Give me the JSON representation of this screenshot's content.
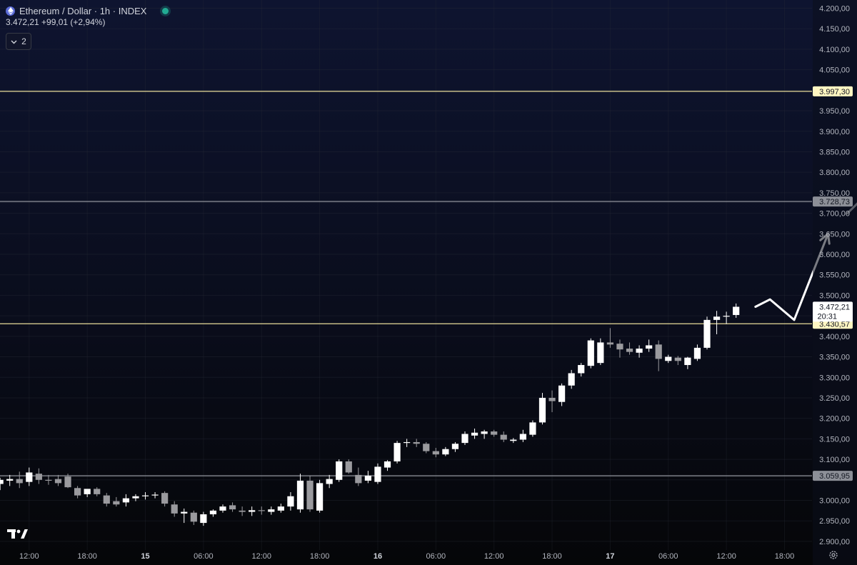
{
  "legend": {
    "title": "Ethereum / Dollar · 1h · INDEX",
    "price_line": "3.472,21 +99,01 (+2,94%)",
    "indicator_count": "2"
  },
  "icons": {
    "symbol": "ethereum-icon",
    "status": "market-status-dot",
    "collapse": "chevron-down-icon",
    "logo": "tradingview-logo",
    "settings": "gear-icon"
  },
  "colors": {
    "up": "#ffffff",
    "down": "#9a9a9e",
    "yellow_line": "#f5e9a0",
    "gray_line": "#8a8d96",
    "status": "#22ab94"
  },
  "chart_data": {
    "type": "candlestick",
    "symbol": "Ethereum / Dollar",
    "interval": "1h",
    "ylim": [
      2880,
      4220
    ],
    "y_ticks": [
      "4.200,00",
      "4.150,00",
      "4.100,00",
      "4.050,00",
      "3.950,00",
      "3.900,00",
      "3.850,00",
      "3.800,00",
      "3.750,00",
      "3.700,00",
      "3.650,00",
      "3.600,00",
      "3.550,00",
      "3.500,00",
      "3.400,00",
      "3.350,00",
      "3.300,00",
      "3.250,00",
      "3.200,00",
      "3.150,00",
      "3.100,00",
      "3.000,00",
      "2.950,00",
      "2.900,00"
    ],
    "y_tick_values": [
      4200,
      4150,
      4100,
      4050,
      3950,
      3900,
      3850,
      3800,
      3750,
      3700,
      3650,
      3600,
      3550,
      3500,
      3400,
      3350,
      3300,
      3250,
      3200,
      3150,
      3100,
      3000,
      2950,
      2900
    ],
    "x_ticks": [
      {
        "label": "12:00",
        "hour": 0,
        "bold": false
      },
      {
        "label": "18:00",
        "hour": 6,
        "bold": false
      },
      {
        "label": "15",
        "hour": 12,
        "bold": true
      },
      {
        "label": "06:00",
        "hour": 18,
        "bold": false
      },
      {
        "label": "12:00",
        "hour": 24,
        "bold": false
      },
      {
        "label": "18:00",
        "hour": 30,
        "bold": false
      },
      {
        "label": "16",
        "hour": 36,
        "bold": true
      },
      {
        "label": "06:00",
        "hour": 42,
        "bold": false
      },
      {
        "label": "12:00",
        "hour": 48,
        "bold": false
      },
      {
        "label": "18:00",
        "hour": 54,
        "bold": false
      },
      {
        "label": "17",
        "hour": 60,
        "bold": true
      },
      {
        "label": "06:00",
        "hour": 66,
        "bold": false
      },
      {
        "label": "12:00",
        "hour": 72,
        "bold": false
      },
      {
        "label": "18:00",
        "hour": 78,
        "bold": false
      }
    ],
    "horizontal_levels": [
      {
        "value": 3997.3,
        "label": "3.997,30",
        "style": "yellow"
      },
      {
        "value": 3728.73,
        "label": "3.728,73",
        "style": "gray"
      },
      {
        "value": 3430.57,
        "label": "3.430,57",
        "style": "yellow"
      },
      {
        "value": 3059.95,
        "label": "3.059,95",
        "style": "gray"
      }
    ],
    "last_price": {
      "value": 3472.21,
      "label": "3.472,21",
      "countdown": "20:31"
    },
    "candles": [
      {
        "o": 3040,
        "h": 3055,
        "l": 3025,
        "c": 3050
      },
      {
        "o": 3048,
        "h": 3062,
        "l": 3035,
        "c": 3052
      },
      {
        "o": 3052,
        "h": 3070,
        "l": 3030,
        "c": 3042
      },
      {
        "o": 3045,
        "h": 3080,
        "l": 3035,
        "c": 3068
      },
      {
        "o": 3065,
        "h": 3078,
        "l": 3040,
        "c": 3050
      },
      {
        "o": 3050,
        "h": 3062,
        "l": 3038,
        "c": 3048
      },
      {
        "o": 3052,
        "h": 3062,
        "l": 3035,
        "c": 3042
      },
      {
        "o": 3058,
        "h": 3065,
        "l": 3030,
        "c": 3032
      },
      {
        "o": 3030,
        "h": 3035,
        "l": 3005,
        "c": 3012
      },
      {
        "o": 3015,
        "h": 3025,
        "l": 3008,
        "c": 3028
      },
      {
        "o": 3028,
        "h": 3032,
        "l": 3010,
        "c": 3015
      },
      {
        "o": 3012,
        "h": 3018,
        "l": 2985,
        "c": 2992
      },
      {
        "o": 2998,
        "h": 3008,
        "l": 2985,
        "c": 2990
      },
      {
        "o": 2995,
        "h": 3015,
        "l": 2985,
        "c": 3005
      },
      {
        "o": 3005,
        "h": 3015,
        "l": 2998,
        "c": 3010
      },
      {
        "o": 3010,
        "h": 3020,
        "l": 3002,
        "c": 3012
      },
      {
        "o": 3012,
        "h": 3020,
        "l": 3005,
        "c": 3014
      },
      {
        "o": 3018,
        "h": 3022,
        "l": 2985,
        "c": 2992
      },
      {
        "o": 2990,
        "h": 2998,
        "l": 2960,
        "c": 2968
      },
      {
        "o": 2968,
        "h": 2980,
        "l": 2945,
        "c": 2972
      },
      {
        "o": 2970,
        "h": 2975,
        "l": 2940,
        "c": 2948
      },
      {
        "o": 2945,
        "h": 2972,
        "l": 2938,
        "c": 2966
      },
      {
        "o": 2966,
        "h": 2978,
        "l": 2960,
        "c": 2975
      },
      {
        "o": 2975,
        "h": 2990,
        "l": 2970,
        "c": 2985
      },
      {
        "o": 2988,
        "h": 2995,
        "l": 2972,
        "c": 2978
      },
      {
        "o": 2975,
        "h": 2985,
        "l": 2962,
        "c": 2972
      },
      {
        "o": 2972,
        "h": 2985,
        "l": 2962,
        "c": 2976
      },
      {
        "o": 2976,
        "h": 2985,
        "l": 2965,
        "c": 2974
      },
      {
        "o": 2972,
        "h": 2985,
        "l": 2965,
        "c": 2978
      },
      {
        "o": 2975,
        "h": 2992,
        "l": 2970,
        "c": 2985
      },
      {
        "o": 2985,
        "h": 3020,
        "l": 2975,
        "c": 3010
      },
      {
        "o": 2978,
        "h": 3065,
        "l": 2970,
        "c": 3048
      },
      {
        "o": 3048,
        "h": 3060,
        "l": 2972,
        "c": 2978
      },
      {
        "o": 2975,
        "h": 3050,
        "l": 2970,
        "c": 3042
      },
      {
        "o": 3040,
        "h": 3062,
        "l": 3030,
        "c": 3052
      },
      {
        "o": 3050,
        "h": 3100,
        "l": 3045,
        "c": 3095
      },
      {
        "o": 3095,
        "h": 3100,
        "l": 3065,
        "c": 3068
      },
      {
        "o": 3062,
        "h": 3080,
        "l": 3035,
        "c": 3042
      },
      {
        "o": 3048,
        "h": 3072,
        "l": 3042,
        "c": 3060
      },
      {
        "o": 3045,
        "h": 3090,
        "l": 3040,
        "c": 3082
      },
      {
        "o": 3080,
        "h": 3098,
        "l": 3072,
        "c": 3095
      },
      {
        "o": 3095,
        "h": 3145,
        "l": 3090,
        "c": 3140
      },
      {
        "o": 3140,
        "h": 3150,
        "l": 3130,
        "c": 3142
      },
      {
        "o": 3142,
        "h": 3150,
        "l": 3130,
        "c": 3138
      },
      {
        "o": 3138,
        "h": 3142,
        "l": 3115,
        "c": 3120
      },
      {
        "o": 3120,
        "h": 3128,
        "l": 3105,
        "c": 3112
      },
      {
        "o": 3112,
        "h": 3130,
        "l": 3108,
        "c": 3125
      },
      {
        "o": 3125,
        "h": 3142,
        "l": 3118,
        "c": 3138
      },
      {
        "o": 3140,
        "h": 3168,
        "l": 3135,
        "c": 3162
      },
      {
        "o": 3158,
        "h": 3175,
        "l": 3150,
        "c": 3165
      },
      {
        "o": 3162,
        "h": 3172,
        "l": 3150,
        "c": 3168
      },
      {
        "o": 3168,
        "h": 3172,
        "l": 3155,
        "c": 3160
      },
      {
        "o": 3160,
        "h": 3168,
        "l": 3142,
        "c": 3148
      },
      {
        "o": 3145,
        "h": 3152,
        "l": 3140,
        "c": 3148
      },
      {
        "o": 3148,
        "h": 3172,
        "l": 3142,
        "c": 3162
      },
      {
        "o": 3160,
        "h": 3195,
        "l": 3155,
        "c": 3190
      },
      {
        "o": 3190,
        "h": 3262,
        "l": 3185,
        "c": 3250
      },
      {
        "o": 3250,
        "h": 3268,
        "l": 3215,
        "c": 3242
      },
      {
        "o": 3240,
        "h": 3285,
        "l": 3230,
        "c": 3280
      },
      {
        "o": 3280,
        "h": 3318,
        "l": 3272,
        "c": 3310
      },
      {
        "o": 3310,
        "h": 3335,
        "l": 3302,
        "c": 3330
      },
      {
        "o": 3328,
        "h": 3395,
        "l": 3322,
        "c": 3390
      },
      {
        "o": 3335,
        "h": 3395,
        "l": 3330,
        "c": 3385
      },
      {
        "o": 3385,
        "h": 3420,
        "l": 3372,
        "c": 3380
      },
      {
        "o": 3382,
        "h": 3392,
        "l": 3348,
        "c": 3368
      },
      {
        "o": 3370,
        "h": 3385,
        "l": 3355,
        "c": 3362
      },
      {
        "o": 3360,
        "h": 3378,
        "l": 3348,
        "c": 3370
      },
      {
        "o": 3370,
        "h": 3392,
        "l": 3362,
        "c": 3378
      },
      {
        "o": 3380,
        "h": 3390,
        "l": 3315,
        "c": 3345
      },
      {
        "o": 3340,
        "h": 3355,
        "l": 3335,
        "c": 3350
      },
      {
        "o": 3348,
        "h": 3352,
        "l": 3330,
        "c": 3340
      },
      {
        "o": 3330,
        "h": 3350,
        "l": 3320,
        "c": 3348
      },
      {
        "o": 3345,
        "h": 3380,
        "l": 3340,
        "c": 3372
      },
      {
        "o": 3372,
        "h": 3448,
        "l": 3368,
        "c": 3440
      },
      {
        "o": 3440,
        "h": 3462,
        "l": 3405,
        "c": 3448
      },
      {
        "o": 3448,
        "h": 3460,
        "l": 3430,
        "c": 3450
      },
      {
        "o": 3452,
        "h": 3480,
        "l": 3445,
        "c": 3472
      }
    ],
    "projection_arrows": [
      {
        "color": "#ffffff",
        "points": [
          [
            75,
            3472
          ],
          [
            76.5,
            3490
          ],
          [
            79,
            3440
          ],
          [
            82.5,
            3650
          ]
        ]
      },
      {
        "color": "#b9bcc4",
        "points": [
          [
            84.5,
            3700
          ],
          [
            86,
            3735
          ],
          [
            86.5,
            3725
          ],
          [
            88,
            3838
          ]
        ]
      }
    ]
  }
}
